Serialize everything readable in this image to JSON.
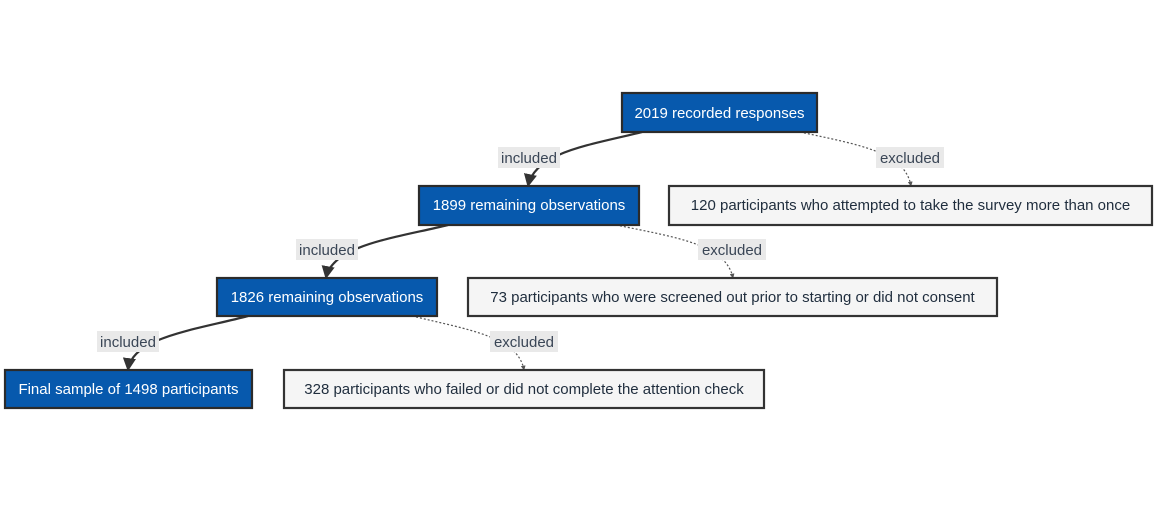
{
  "nodes": {
    "n2019": "2019 recorded responses",
    "n1899": "1899 remaining observations",
    "n1826": "1826 remaining observations",
    "final": "Final sample of 1498 participants",
    "ex120": "120 participants who attempted to take the survey more than once",
    "ex73": "73 participants who were screened out prior to starting or did not consent",
    "ex328": "328 participants who failed or did not complete the attention check"
  },
  "edges": {
    "included": "included",
    "excluded": "excluded"
  },
  "colors": {
    "main_fill": "#0759ad",
    "excluded_fill": "#f5f5f5",
    "border": "#333333"
  }
}
